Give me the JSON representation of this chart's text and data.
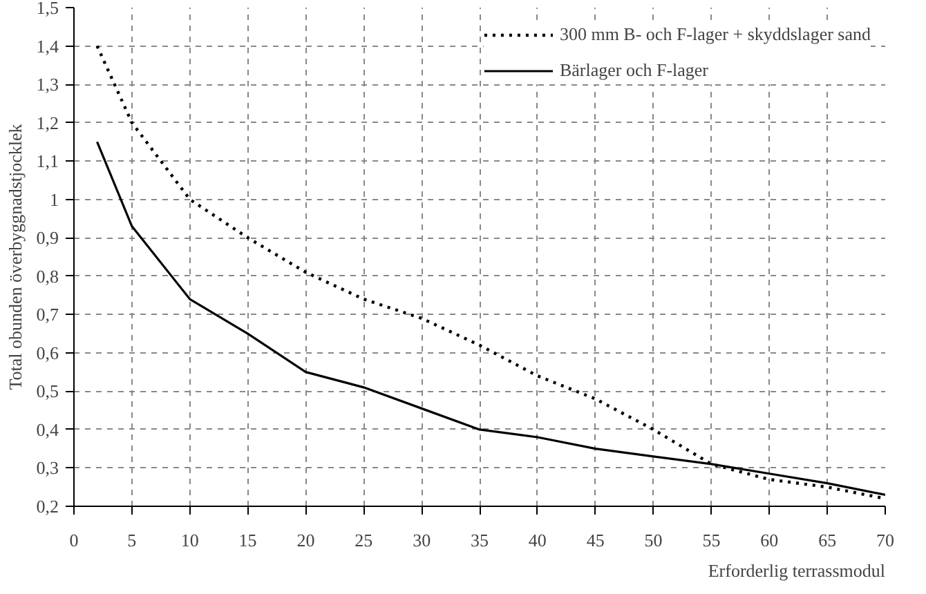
{
  "chart_data": {
    "type": "line",
    "xlabel": "Erforderlig terrassmodul",
    "ylabel": "Total obunden överbyggnadstjocklek",
    "xlim": [
      0,
      70
    ],
    "xticks": [
      0,
      5,
      10,
      15,
      20,
      25,
      30,
      35,
      40,
      45,
      50,
      55,
      60,
      65,
      70
    ],
    "ylim": [
      0.2,
      1.5
    ],
    "yticks": [
      {
        "value": 0.2,
        "label": "0,2"
      },
      {
        "value": 0.3,
        "label": "0,3"
      },
      {
        "value": 0.4,
        "label": "0,4"
      },
      {
        "value": 0.5,
        "label": "0,5"
      },
      {
        "value": 0.6,
        "label": "0,6"
      },
      {
        "value": 0.7,
        "label": "0,7"
      },
      {
        "value": 0.8,
        "label": "0,8"
      },
      {
        "value": 0.9,
        "label": "0,9"
      },
      {
        "value": 1,
        "label": "1"
      },
      {
        "value": 1.1,
        "label": "1,1"
      },
      {
        "value": 1.2,
        "label": "1,2"
      },
      {
        "value": 1.3,
        "label": "1,3"
      },
      {
        "value": 1.4,
        "label": "1,4"
      },
      {
        "value": 1.5,
        "label": "1,5"
      }
    ],
    "grid": true,
    "legend": "top right",
    "series": [
      {
        "name": "300 mm B- och F-lager + skyddslager sand",
        "color": "#000000",
        "line_style": "dotted",
        "x": [
          2,
          5,
          10,
          15,
          20,
          25,
          30,
          35,
          40,
          45,
          50,
          55,
          60,
          65,
          70
        ],
        "values": [
          1.4,
          1.2,
          1.0,
          0.9,
          0.81,
          0.74,
          0.69,
          0.62,
          0.54,
          0.48,
          0.4,
          0.31,
          0.27,
          0.25,
          0.22
        ]
      },
      {
        "name": "Bärlager och F-lager",
        "color": "#000000",
        "line_style": "solid",
        "x": [
          2,
          5,
          10,
          15,
          20,
          25,
          30,
          35,
          40,
          45,
          50,
          55,
          60,
          65,
          70
        ],
        "values": [
          1.15,
          0.93,
          0.74,
          0.65,
          0.55,
          0.51,
          0.455,
          0.4,
          0.38,
          0.35,
          0.33,
          0.31,
          0.285,
          0.26,
          0.23
        ]
      }
    ]
  }
}
